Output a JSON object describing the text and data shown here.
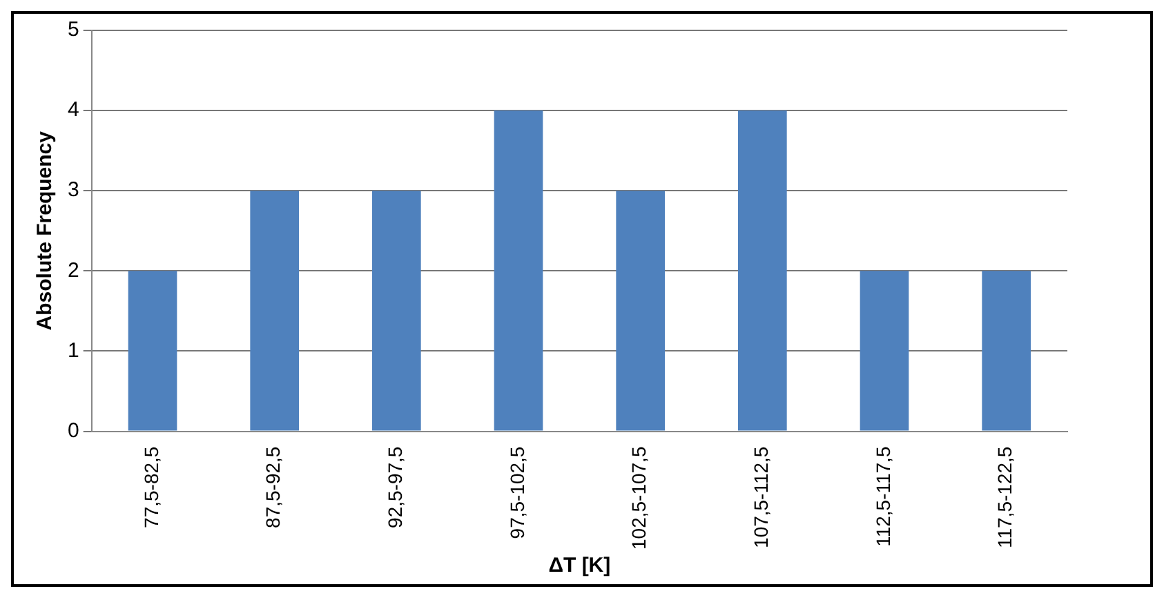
{
  "chart_data": {
    "type": "bar",
    "xlabel": "ΔT [K]",
    "ylabel": "Absolute Frequency",
    "categories": [
      "77,5-82,5",
      "87,5-92,5",
      "92,5-97,5",
      "97,5-102,5",
      "102,5-107,5",
      "107,5-112,5",
      "112,5-117,5",
      "117,5-122,5"
    ],
    "values": [
      2,
      3,
      3,
      4,
      3,
      4,
      2,
      2
    ],
    "color": "#4f81bd",
    "ylim": [
      0,
      5
    ],
    "yticks": [
      0,
      1,
      2,
      3,
      4,
      5
    ],
    "grid": "y"
  }
}
